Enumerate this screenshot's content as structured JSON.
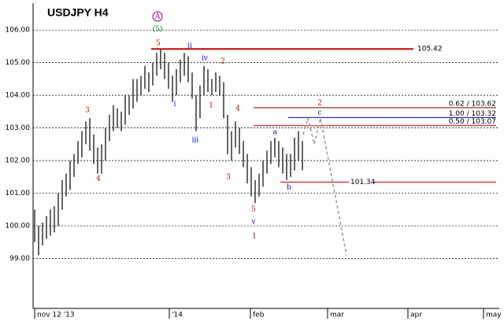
{
  "chart_data": {
    "type": "ohlc",
    "title": "USDJPY H4",
    "color": "#000000",
    "xlim": [
      0,
      117.6
    ],
    "xticks": [
      {
        "value": 0,
        "label": "nov 12 '13"
      },
      {
        "value": 34.2,
        "label": "'14"
      },
      {
        "value": 54.8,
        "label": "feb"
      },
      {
        "value": 74.4,
        "label": "mar"
      },
      {
        "value": 94.8,
        "label": "apr"
      },
      {
        "value": 114,
        "label": "may"
      }
    ],
    "ylim": [
      97.47,
      106.8
    ],
    "yticks": [
      {
        "value": 99,
        "label": "99.00"
      },
      {
        "value": 100,
        "label": "100.00"
      },
      {
        "value": 101,
        "label": "101.00"
      },
      {
        "value": 102,
        "label": "102.00"
      },
      {
        "value": 103,
        "label": "103.00"
      },
      {
        "value": 104,
        "label": "104.00"
      },
      {
        "value": 105,
        "label": "105.00"
      },
      {
        "value": 106,
        "label": "106.00"
      }
    ],
    "grid": true,
    "x": [
      0,
      1,
      2,
      3,
      4,
      5,
      6,
      7,
      8,
      9,
      10,
      11,
      12,
      13,
      14,
      15,
      16,
      17,
      18,
      19,
      20,
      21,
      22,
      23,
      24,
      25,
      26,
      27,
      28,
      29,
      30,
      31,
      32,
      33,
      34,
      35,
      36,
      37,
      38,
      39,
      40,
      41,
      42,
      43,
      44,
      45,
      46,
      47,
      48,
      49,
      50,
      51,
      52,
      53,
      54,
      55,
      56,
      57,
      58,
      59,
      60,
      61,
      62,
      63,
      64,
      65,
      66,
      67,
      68
    ],
    "lows": [
      99.5,
      99.1,
      99.4,
      99.6,
      99.7,
      99.8,
      100.0,
      100.5,
      100.9,
      101.1,
      101.5,
      101.9,
      102.1,
      102.5,
      102.3,
      101.9,
      101.6,
      101.6,
      102.0,
      102.6,
      102.9,
      103.0,
      102.9,
      103.1,
      103.4,
      103.6,
      103.8,
      104.0,
      104.2,
      104.1,
      104.3,
      104.6,
      104.8,
      104.5,
      104.2,
      103.8,
      104.0,
      104.4,
      104.6,
      104.4,
      103.9,
      102.9,
      103.3,
      104.0,
      104.1,
      104.0,
      104.1,
      104.0,
      103.3,
      102.2,
      102.0,
      102.4,
      102.2,
      101.8,
      101.3,
      100.9,
      100.7,
      100.9,
      101.2,
      101.6,
      101.9,
      102.1,
      101.8,
      101.6,
      101.4,
      101.5,
      101.7,
      102.0,
      101.7
    ],
    "highs": [
      100.5,
      100.0,
      100.1,
      100.3,
      100.5,
      100.6,
      101.0,
      101.4,
      101.6,
      102.0,
      102.2,
      102.6,
      102.9,
      103.2,
      103.3,
      102.8,
      102.4,
      102.5,
      103.0,
      103.4,
      103.7,
      103.6,
      103.5,
      104.0,
      104.0,
      104.5,
      104.5,
      104.6,
      104.9,
      104.7,
      105.0,
      105.3,
      105.4,
      105.3,
      105.0,
      104.6,
      104.8,
      105.1,
      105.3,
      105.2,
      104.7,
      104.0,
      104.3,
      104.9,
      104.8,
      104.5,
      104.7,
      104.6,
      104.4,
      103.4,
      102.9,
      103.2,
      103.0,
      102.6,
      102.2,
      101.8,
      101.4,
      101.6,
      102.0,
      102.3,
      102.6,
      102.7,
      102.6,
      102.4,
      102.2,
      102.2,
      102.7,
      102.9,
      102.6
    ],
    "levels": [
      {
        "value": 105.42,
        "x_range": [
          29.6,
          96.2
        ],
        "color": "#cc0000"
      },
      {
        "value": 101.34,
        "x_range": [
          62.4,
          117.2
        ],
        "color": "#cc0000"
      },
      {
        "ratio": 0.62,
        "value": 103.62,
        "label": "0.62 / 103.62",
        "x_range": [
          55.6,
          117.2
        ],
        "color": "#800000"
      },
      {
        "ratio": 1.0,
        "value": 103.32,
        "label": "1.00 / 103.32",
        "x_range": [
          64.4,
          117.2
        ],
        "color": "#0000cc"
      },
      {
        "ratio": 0.5,
        "value": 103.07,
        "label": "0.50 / 103.07",
        "x_range": [
          55.6,
          117.2
        ],
        "color": "#cc0000"
      }
    ],
    "projection": {
      "x": [
        68.2,
        69.4,
        71,
        72.6,
        79.2
      ],
      "values": [
        102.8,
        103.3,
        102.5,
        103.3,
        99.1
      ],
      "color": "#999999"
    },
    "annotations": [
      {
        "text": "A",
        "color": "#800080",
        "circled": true
      },
      {
        "text": "(5)",
        "color": "#008000"
      },
      {
        "text": "5",
        "color": "#cc0000"
      },
      {
        "text": "ii",
        "color": "#0000cc"
      },
      {
        "text": "iv",
        "color": "#0000cc"
      },
      {
        "text": "2",
        "color": "#cc0000"
      },
      {
        "text": "i",
        "color": "#0000cc"
      },
      {
        "text": "1",
        "color": "#cc0000"
      },
      {
        "text": "4",
        "color": "#cc0000"
      },
      {
        "text": "3",
        "color": "#cc0000"
      },
      {
        "text": "iii",
        "color": "#0000cc"
      },
      {
        "text": "4",
        "color": "#cc0000"
      },
      {
        "text": "3",
        "color": "#cc0000"
      },
      {
        "text": "a",
        "color": "#0000cc"
      },
      {
        "text": "b",
        "color": "#0000cc"
      },
      {
        "text": "c",
        "color": "#0000cc"
      },
      {
        "text": "2",
        "color": "#cc0000"
      },
      {
        "text": "5",
        "color": "#cc0000"
      },
      {
        "text": "v",
        "color": "#0000cc"
      },
      {
        "text": "1",
        "color": "#800000"
      }
    ]
  }
}
